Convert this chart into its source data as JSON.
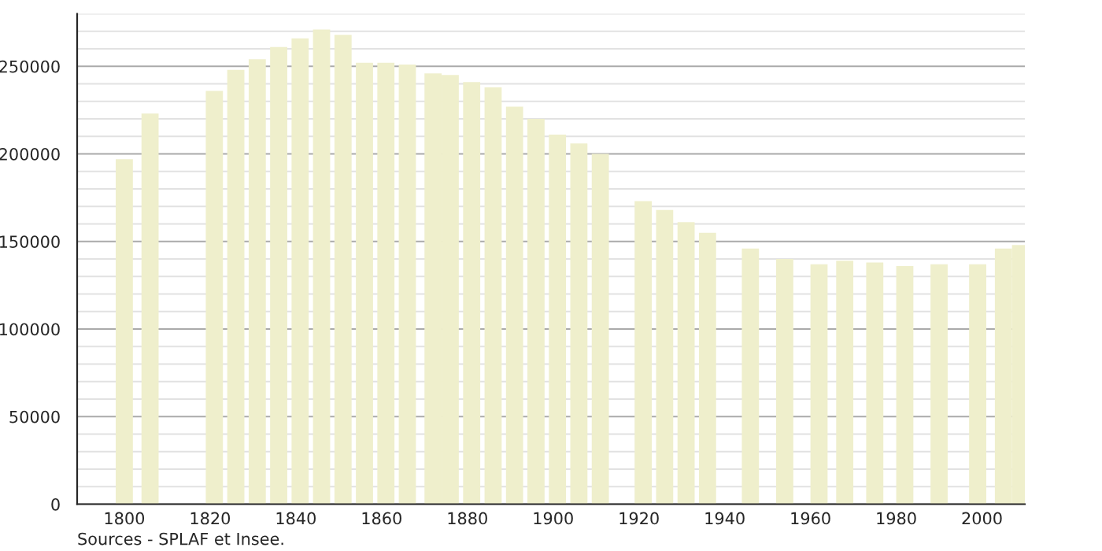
{
  "chart_data": {
    "type": "bar",
    "x": [
      1800,
      1806,
      1821,
      1826,
      1831,
      1836,
      1841,
      1846,
      1851,
      1856,
      1861,
      1866,
      1872,
      1876,
      1881,
      1886,
      1891,
      1896,
      1901,
      1906,
      1911,
      1921,
      1926,
      1931,
      1936,
      1946,
      1954,
      1962,
      1968,
      1975,
      1982,
      1990,
      1999,
      2005,
      2009
    ],
    "values": [
      197000,
      223000,
      236000,
      248000,
      254000,
      261000,
      266000,
      271000,
      268000,
      252000,
      252000,
      251000,
      246000,
      245000,
      241000,
      238000,
      227000,
      220000,
      211000,
      206000,
      200000,
      173000,
      168000,
      161000,
      155000,
      146000,
      140000,
      137000,
      139000,
      138000,
      136000,
      137000,
      137000,
      146000,
      148000
    ],
    "color": "#efefcc",
    "xlim": [
      1789,
      2010
    ],
    "xticks": [
      1800,
      1820,
      1840,
      1860,
      1880,
      1900,
      1920,
      1940,
      1960,
      1980,
      2000
    ],
    "ylim": [
      0,
      280000
    ],
    "yticks": [
      0,
      50000,
      100000,
      150000,
      200000,
      250000
    ],
    "grid": "y",
    "annotations": [
      "Sources - SPLAF et Insee."
    ]
  }
}
